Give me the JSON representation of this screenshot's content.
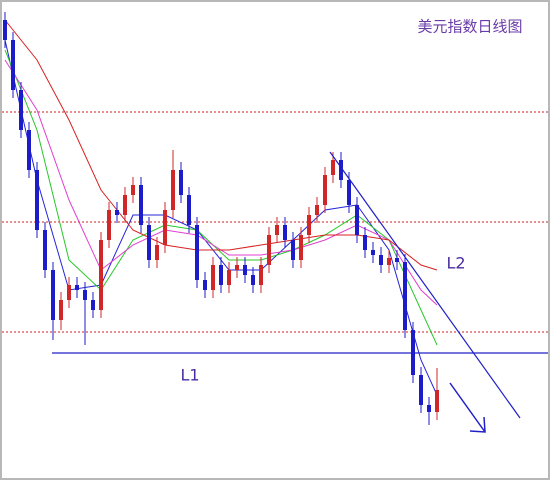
{
  "chart_data": {
    "type": "candlestick",
    "title": "美元指数日线图",
    "ylim": [
      0,
      480
    ],
    "up_color": "#d02828",
    "down_color": "#1c1cc8",
    "ohlc": [
      [
        460,
        468,
        432,
        440
      ],
      [
        440,
        448,
        382,
        390
      ],
      [
        390,
        398,
        342,
        350
      ],
      [
        350,
        358,
        302,
        310
      ],
      [
        310,
        318,
        242,
        250
      ],
      [
        250,
        258,
        202,
        210
      ],
      [
        210,
        218,
        140,
        160
      ],
      [
        160,
        188,
        150,
        180
      ],
      [
        180,
        203,
        172,
        195
      ],
      [
        195,
        203,
        182,
        190
      ],
      [
        190,
        198,
        135,
        180
      ],
      [
        180,
        188,
        162,
        170
      ],
      [
        170,
        248,
        162,
        240
      ],
      [
        240,
        278,
        232,
        270
      ],
      [
        270,
        278,
        257,
        265
      ],
      [
        265,
        293,
        257,
        285
      ],
      [
        285,
        303,
        277,
        295
      ],
      [
        295,
        303,
        247,
        255
      ],
      [
        255,
        263,
        212,
        220
      ],
      [
        220,
        243,
        212,
        235
      ],
      [
        235,
        278,
        227,
        270
      ],
      [
        270,
        330,
        262,
        310
      ],
      [
        310,
        318,
        277,
        285
      ],
      [
        285,
        293,
        247,
        255
      ],
      [
        255,
        263,
        192,
        200
      ],
      [
        200,
        208,
        182,
        190
      ],
      [
        190,
        223,
        182,
        215
      ],
      [
        215,
        223,
        187,
        195
      ],
      [
        195,
        218,
        187,
        210
      ],
      [
        210,
        223,
        202,
        215
      ],
      [
        215,
        223,
        197,
        205
      ],
      [
        205,
        213,
        187,
        195
      ],
      [
        195,
        223,
        187,
        215
      ],
      [
        215,
        253,
        207,
        245
      ],
      [
        245,
        263,
        237,
        255
      ],
      [
        255,
        263,
        232,
        240
      ],
      [
        240,
        248,
        212,
        220
      ],
      [
        220,
        253,
        212,
        245
      ],
      [
        245,
        273,
        237,
        265
      ],
      [
        265,
        283,
        257,
        275
      ],
      [
        275,
        313,
        267,
        305
      ],
      [
        305,
        328,
        297,
        320
      ],
      [
        320,
        328,
        292,
        300
      ],
      [
        300,
        308,
        267,
        275
      ],
      [
        275,
        283,
        237,
        245
      ],
      [
        245,
        253,
        222,
        230
      ],
      [
        230,
        238,
        217,
        225
      ],
      [
        225,
        233,
        207,
        215
      ],
      [
        215,
        230,
        207,
        222
      ],
      [
        222,
        230,
        210,
        218
      ],
      [
        218,
        226,
        142,
        150
      ],
      [
        150,
        158,
        97,
        105
      ],
      [
        105,
        113,
        67,
        75
      ],
      [
        75,
        83,
        55,
        68
      ],
      [
        68,
        112,
        60,
        90
      ]
    ],
    "series": [
      {
        "color": "#2424d8",
        "x": [
          0,
          4,
          8,
          12,
          16,
          20,
          24,
          28,
          32,
          36,
          40,
          44,
          48,
          52,
          54
        ],
        "values": [
          440,
          300,
          190,
          195,
          265,
          265,
          250,
          210,
          210,
          240,
          270,
          275,
          230,
          120,
          85
        ]
      },
      {
        "color": "#28c828",
        "x": [
          0,
          4,
          8,
          12,
          16,
          20,
          24,
          28,
          32,
          36,
          40,
          44,
          48,
          52,
          54
        ],
        "values": [
          430,
          350,
          220,
          190,
          240,
          255,
          250,
          220,
          220,
          230,
          245,
          265,
          240,
          170,
          135
        ]
      },
      {
        "color": "#e040d0",
        "x": [
          0,
          4,
          8,
          12,
          16,
          20,
          24,
          28,
          32,
          36,
          40,
          44,
          48,
          52,
          54
        ],
        "values": [
          420,
          370,
          280,
          210,
          235,
          250,
          245,
          225,
          225,
          230,
          240,
          255,
          240,
          190,
          175
        ]
      },
      {
        "color": "#d82020",
        "x": [
          0,
          4,
          8,
          12,
          16,
          20,
          24,
          28,
          32,
          36,
          40,
          44,
          48,
          52,
          54
        ],
        "values": [
          460,
          420,
          360,
          290,
          250,
          235,
          230,
          230,
          235,
          240,
          245,
          245,
          240,
          215,
          210
        ]
      }
    ],
    "annotations": [
      "L1",
      "L2"
    ]
  }
}
